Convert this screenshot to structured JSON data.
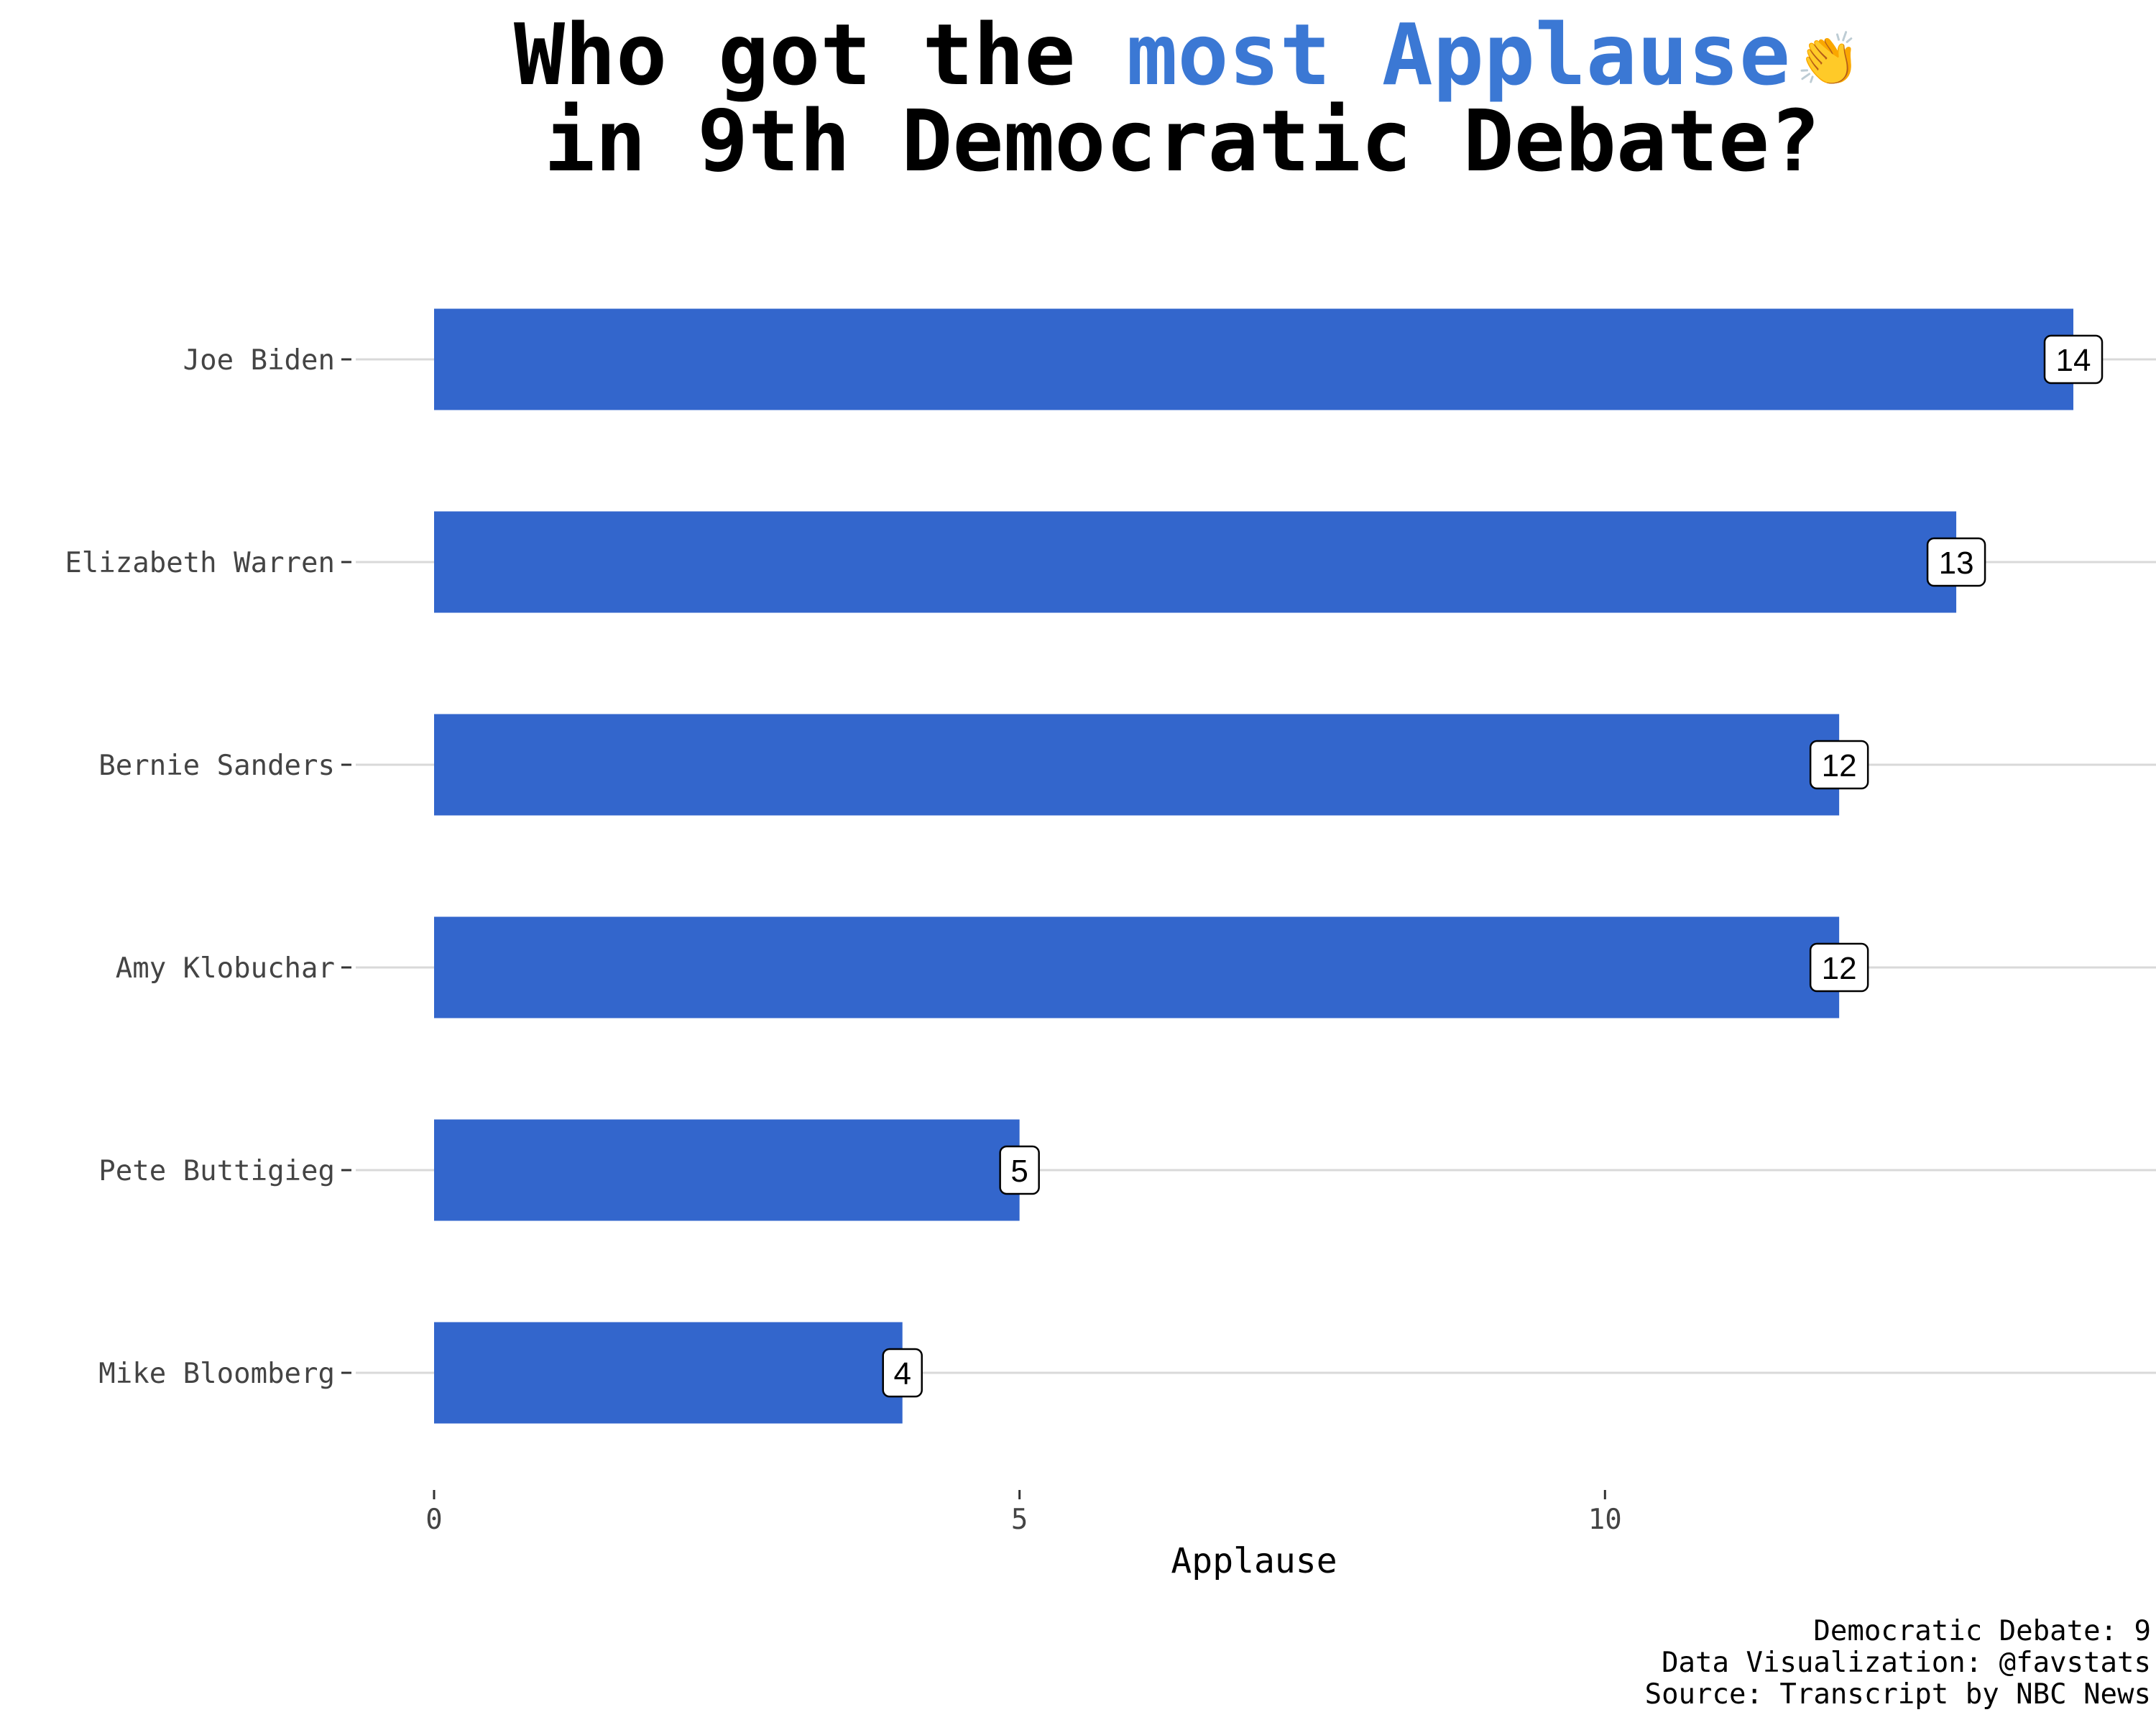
{
  "title": {
    "part1": "Who got the ",
    "highlight": "most Applause",
    "emoji": "👏",
    "line2": "in 9th Democratic Debate?"
  },
  "colors": {
    "bar": "#3366cc",
    "title_highlight": "#3b78d4",
    "gridline": "#d9d9d9"
  },
  "chart_data": {
    "type": "bar",
    "orientation": "horizontal",
    "categories": [
      "Joe Biden",
      "Elizabeth Warren",
      "Bernie Sanders",
      "Amy Klobuchar",
      "Pete Buttigieg",
      "Mike Bloomberg"
    ],
    "values": [
      14,
      13,
      12,
      12,
      5,
      4
    ],
    "data_labels": [
      "14",
      "13",
      "12",
      "12",
      "5",
      "4"
    ],
    "xlabel": "Applause",
    "ylabel": "",
    "xlim": [
      0,
      14
    ],
    "xticks": [
      0,
      5,
      10
    ],
    "grid": "horizontal major gridlines",
    "legend": "none"
  },
  "caption": {
    "line1": "Democratic Debate: 9",
    "line2": "Data Visualization: @favstats",
    "line3": "Source: Transcript by NBC News"
  }
}
